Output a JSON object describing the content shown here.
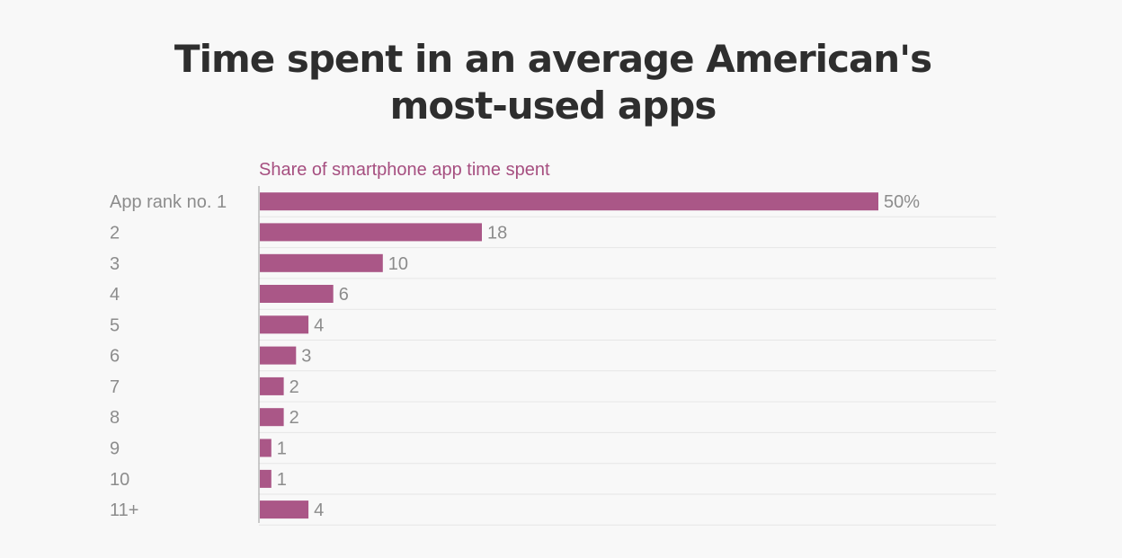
{
  "chart_data": {
    "type": "bar",
    "orientation": "horizontal",
    "title": "Time spent in an average American's most-used apps",
    "subtitle": "Share of smartphone app time spent",
    "categories": [
      "App rank no. 1",
      "2",
      "3",
      "4",
      "5",
      "6",
      "7",
      "8",
      "9",
      "10",
      "11+"
    ],
    "values": [
      50,
      18,
      10,
      6,
      4,
      3,
      2,
      2,
      1,
      1,
      4
    ],
    "value_labels": [
      "50%",
      "18",
      "10",
      "6",
      "4",
      "3",
      "2",
      "2",
      "1",
      "1",
      "4"
    ],
    "xlim": [
      0,
      60
    ],
    "xlabel": "",
    "ylabel": "",
    "grid": true,
    "colors": {
      "bar": "#aa5787",
      "subtitle": "#a64f80"
    }
  }
}
